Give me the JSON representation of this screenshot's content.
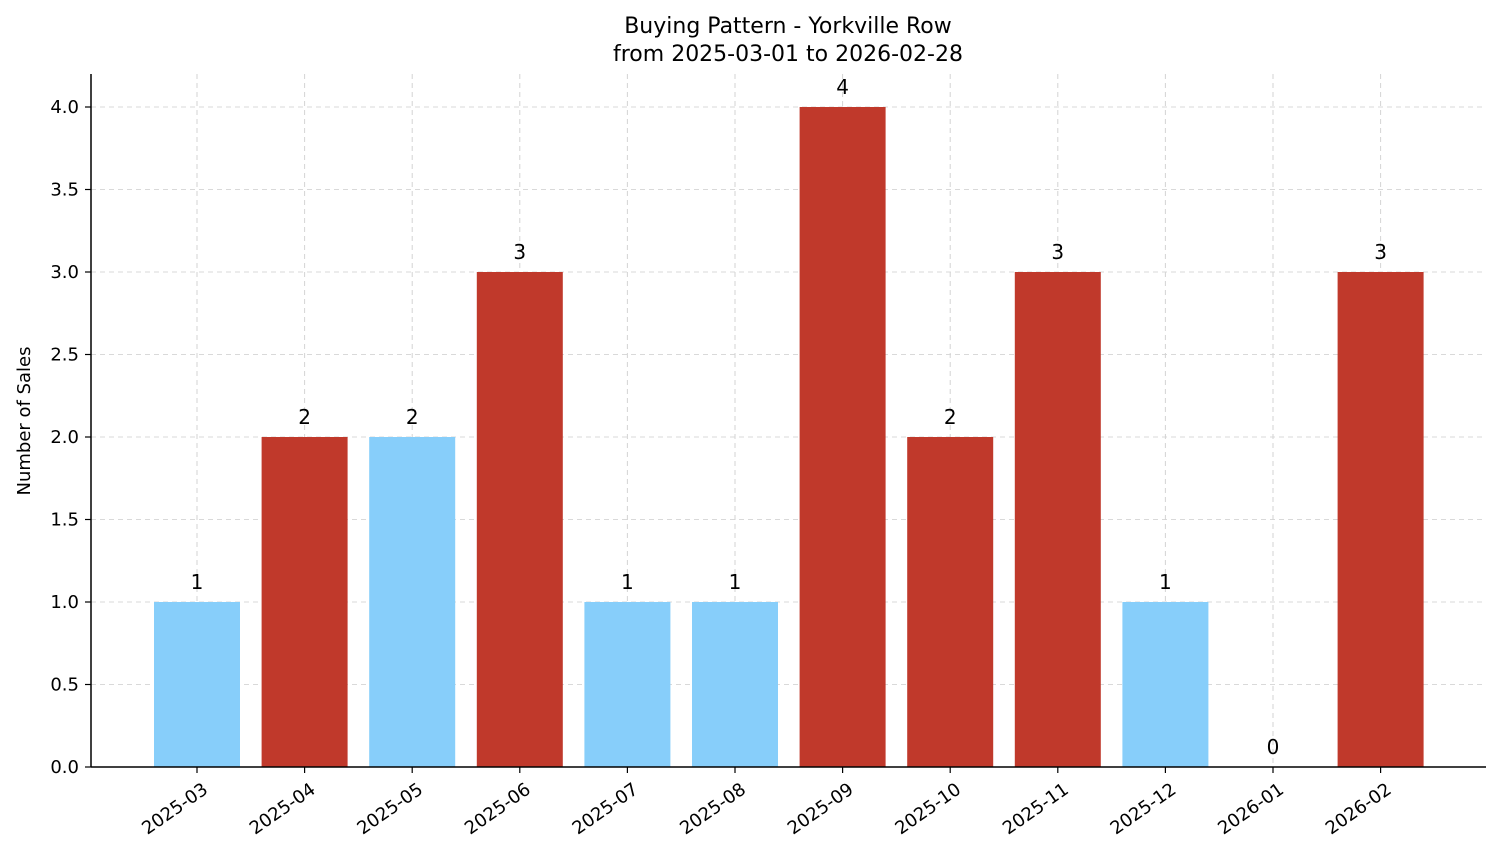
{
  "chart_data": {
    "type": "bar",
    "title": "Buying Pattern - Yorkville Row",
    "subtitle": "from 2025-03-01 to 2026-02-28",
    "xlabel": "",
    "ylabel": "Number of Sales",
    "categories": [
      "2025-03",
      "2025-04",
      "2025-05",
      "2025-06",
      "2025-07",
      "2025-08",
      "2025-09",
      "2025-10",
      "2025-11",
      "2025-12",
      "2026-01",
      "2026-02"
    ],
    "values": [
      1,
      2,
      2,
      3,
      1,
      1,
      4,
      2,
      3,
      1,
      0,
      3
    ],
    "data_labels": [
      "1",
      "2",
      "2",
      "3",
      "1",
      "1",
      "4",
      "2",
      "3",
      "1",
      "0",
      "3"
    ],
    "bar_colors": [
      "#87CEFA",
      "#C0392B",
      "#87CEFA",
      "#C0392B",
      "#87CEFA",
      "#87CEFA",
      "#C0392B",
      "#C0392B",
      "#C0392B",
      "#87CEFA",
      "#87CEFA",
      "#C0392B"
    ],
    "ylim": [
      0,
      4.2
    ],
    "yticks": [
      0.0,
      0.5,
      1.0,
      1.5,
      2.0,
      2.5,
      3.0,
      3.5,
      4.0
    ],
    "ytick_labels": [
      "0.0",
      "0.5",
      "1.0",
      "1.5",
      "2.0",
      "2.5",
      "3.0",
      "3.5",
      "4.0"
    ],
    "grid": true,
    "legend": "none"
  }
}
